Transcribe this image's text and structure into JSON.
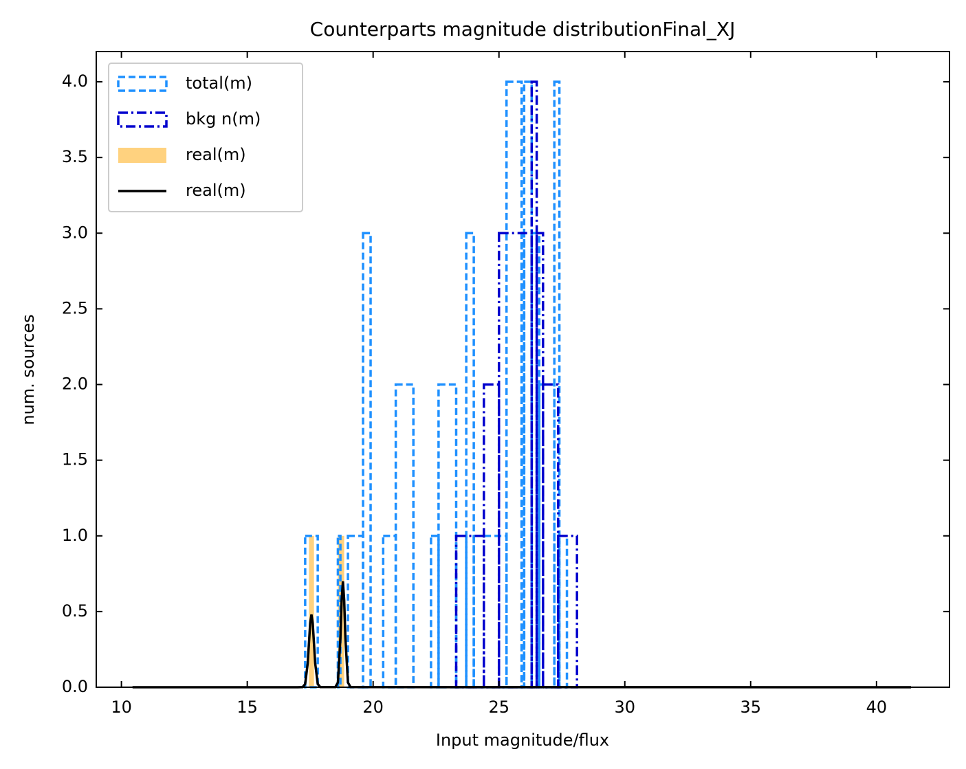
{
  "chart_data": {
    "type": "histogram",
    "title": "Counterparts magnitude distributionFinal_XJ",
    "x_label": "Input magnitude/flux",
    "y_label": "num. sources",
    "xlim": [
      9.0,
      42.9
    ],
    "ylim": [
      0,
      4.2
    ],
    "xticks": [
      10,
      15,
      20,
      25,
      30,
      35,
      40
    ],
    "yticks": [
      {
        "value": 0,
        "label": "0.0"
      },
      {
        "value": 0.5,
        "label": "0.5"
      },
      {
        "value": 1,
        "label": "1.0"
      },
      {
        "value": 1.5,
        "label": "1.5"
      },
      {
        "value": 2,
        "label": "2.0"
      },
      {
        "value": 2.5,
        "label": "2.5"
      },
      {
        "value": 3,
        "label": "3.0"
      },
      {
        "value": 3.5,
        "label": "3.5"
      },
      {
        "value": 4,
        "label": "4.0"
      }
    ],
    "legend": "upper left",
    "series": [
      {
        "name": "total(m)",
        "color": "#1e90ff",
        "histtype": "step",
        "linestyle": "dashed",
        "bins": [
          10.44,
          17.3,
          17.8,
          18.6,
          18.7,
          19.0,
          19.6,
          19.9,
          20.4,
          20.9,
          21.6,
          22.3,
          22.6,
          23.3,
          23.7,
          24.0,
          25.3,
          25.9,
          26.0,
          26.3,
          26.6,
          27.2,
          27.4,
          27.7,
          41.37
        ],
        "values": [
          0,
          1,
          0,
          1,
          0,
          1,
          3,
          0,
          1,
          2,
          0,
          1,
          2,
          1,
          3,
          1,
          4,
          3,
          4,
          3,
          2,
          4,
          1,
          0
        ]
      },
      {
        "name": "bkg n(m)",
        "color": "#0000cd",
        "histtype": "step",
        "linestyle": "dashdot",
        "bins": [
          10.44,
          23.3,
          24.4,
          25.0,
          26.3,
          26.5,
          26.75,
          27.35,
          28.1,
          41.37
        ],
        "values": [
          0,
          1,
          2,
          3,
          4,
          3,
          2,
          1,
          0
        ]
      },
      {
        "name": "real(m)",
        "color": "#ffd27f",
        "histtype": "stepfilled",
        "bins": [
          17.45,
          17.65,
          18.6,
          18.85
        ],
        "values": [
          1,
          0,
          1
        ]
      },
      {
        "name": "real(m)",
        "color": "#000000",
        "histtype": "line",
        "x": [
          10.44,
          17.0,
          17.2,
          17.3,
          17.4,
          17.5,
          17.55,
          17.6,
          17.7,
          17.8,
          17.9,
          18.5,
          18.6,
          18.7,
          18.75,
          18.8,
          18.85,
          18.9,
          19.0,
          19.1,
          41.37
        ],
        "values": [
          0,
          0,
          0.001,
          0.021,
          0.156,
          0.424,
          0.48,
          0.424,
          0.156,
          0.021,
          0.001,
          0.001,
          0.031,
          0.321,
          0.576,
          0.7,
          0.576,
          0.321,
          0.031,
          0.001,
          0
        ]
      }
    ]
  }
}
